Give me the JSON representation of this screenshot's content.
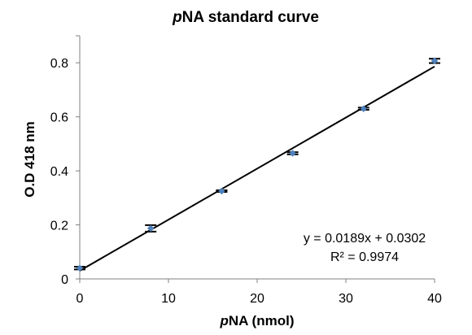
{
  "chart_data": {
    "type": "scatter",
    "title_prefix": "p",
    "title_rest": "NA standard curve",
    "xlabel_prefix": "p",
    "xlabel_rest": "NA (nmol)",
    "ylabel": "O.D 418 nm",
    "xlim": [
      0,
      40
    ],
    "ylim": [
      0,
      0.9
    ],
    "xticks": [
      "0",
      "10",
      "20",
      "30",
      "40"
    ],
    "yticks": [
      "0",
      "0.2",
      "0.4",
      "0.6",
      "0.8"
    ],
    "x": [
      0,
      8,
      16,
      24,
      32,
      40
    ],
    "y": [
      0.04,
      0.187,
      0.325,
      0.465,
      0.63,
      0.807
    ],
    "yerr": [
      0.005,
      0.012,
      0.003,
      0.004,
      0.004,
      0.008
    ],
    "trendline": {
      "slope": 0.0189,
      "intercept": 0.0302
    },
    "equation": "y = 0.0189x + 0.0302",
    "r2": "R² = 0.9974",
    "grid": false,
    "legend": false
  },
  "colors": {
    "marker": "#4f81bd",
    "line": "#000000",
    "axis": "#808080"
  }
}
